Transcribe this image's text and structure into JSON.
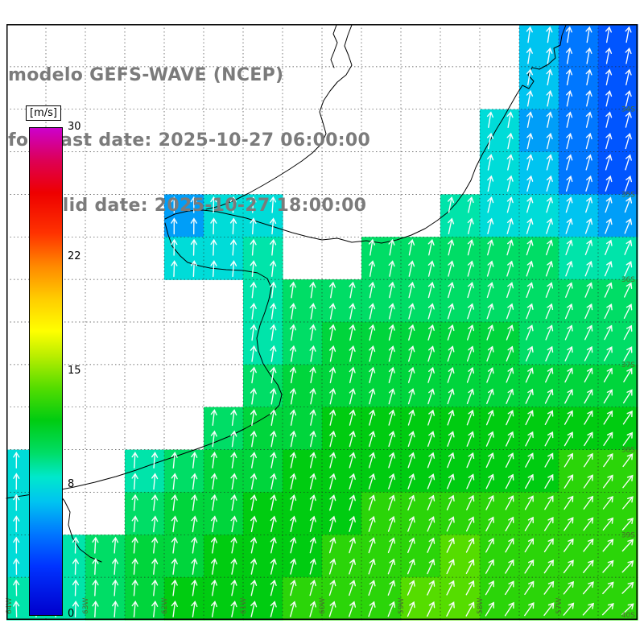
{
  "header": {
    "line1": "modelo GEFS-WAVE (NCEP)",
    "line2": "forecast date: 2025-10-27 06:00:00",
    "line3": "valid date: 2025-10-27 18:00:00"
  },
  "colorbar": {
    "unit_label": "[m/s]",
    "min": 0,
    "max": 30,
    "tick_values": [
      30,
      22,
      15,
      8,
      0
    ],
    "stops": [
      {
        "value": 0,
        "color": "#0000cd"
      },
      {
        "value": 3,
        "color": "#0033ff"
      },
      {
        "value": 5,
        "color": "#0077ff"
      },
      {
        "value": 7,
        "color": "#00c4f0"
      },
      {
        "value": 8.5,
        "color": "#00e8cc"
      },
      {
        "value": 10,
        "color": "#00dd66"
      },
      {
        "value": 12,
        "color": "#00cc11"
      },
      {
        "value": 14,
        "color": "#55dd00"
      },
      {
        "value": 16,
        "color": "#bbee00"
      },
      {
        "value": 17.5,
        "color": "#ffff00"
      },
      {
        "value": 19.5,
        "color": "#ffcc00"
      },
      {
        "value": 21.5,
        "color": "#ff8800"
      },
      {
        "value": 23.5,
        "color": "#ff3300"
      },
      {
        "value": 26,
        "color": "#ee0000"
      },
      {
        "value": 28,
        "color": "#dd0055"
      },
      {
        "value": 30,
        "color": "#cc00cc"
      }
    ]
  },
  "map": {
    "lat_labels": [
      "34S",
      "35S",
      "36S",
      "37S",
      "38S",
      "39S",
      "40S"
    ],
    "lon_labels": [
      "64W",
      "63W",
      "62W",
      "61W",
      "60W",
      "59W",
      "58W",
      "57W"
    ]
  },
  "wind": {
    "speed_grid": [
      [
        null,
        null,
        null,
        null,
        null,
        null,
        null,
        null,
        null,
        null,
        null,
        null,
        null,
        7,
        5,
        4
      ],
      [
        null,
        null,
        null,
        null,
        null,
        null,
        null,
        null,
        null,
        null,
        null,
        null,
        null,
        7,
        5,
        4
      ],
      [
        null,
        null,
        null,
        null,
        null,
        null,
        null,
        null,
        null,
        null,
        null,
        null,
        8,
        6,
        5,
        4
      ],
      [
        null,
        null,
        null,
        null,
        null,
        null,
        null,
        null,
        null,
        null,
        null,
        null,
        8,
        7,
        5,
        4
      ],
      [
        null,
        null,
        null,
        null,
        6,
        8,
        8,
        null,
        null,
        null,
        null,
        9,
        8,
        8,
        7,
        6
      ],
      [
        null,
        null,
        null,
        null,
        8,
        8,
        9,
        null,
        null,
        10,
        10,
        10,
        10,
        10,
        9,
        9
      ],
      [
        null,
        null,
        null,
        null,
        null,
        null,
        9,
        10,
        10,
        10,
        10,
        10,
        10,
        10,
        10,
        10
      ],
      [
        null,
        null,
        null,
        null,
        null,
        null,
        9,
        10,
        11,
        11,
        11,
        11,
        11,
        10,
        10,
        10
      ],
      [
        null,
        null,
        null,
        null,
        null,
        null,
        10,
        11,
        11,
        11,
        11,
        11,
        11,
        11,
        11,
        11
      ],
      [
        null,
        null,
        null,
        null,
        null,
        10,
        11,
        11,
        12,
        12,
        12,
        12,
        12,
        12,
        12,
        12
      ],
      [
        8,
        null,
        null,
        9,
        10,
        11,
        11,
        12,
        12,
        12,
        12,
        12,
        12,
        12,
        13,
        13
      ],
      [
        8,
        null,
        null,
        10,
        11,
        11,
        12,
        12,
        12,
        13,
        13,
        13,
        13,
        13,
        13,
        13
      ],
      [
        8,
        9,
        10,
        11,
        11,
        12,
        12,
        12,
        13,
        13,
        13,
        14,
        13,
        13,
        13,
        13
      ],
      [
        9,
        9,
        10,
        11,
        12,
        12,
        12,
        13,
        13,
        13,
        14,
        14,
        13,
        13,
        13,
        13
      ]
    ],
    "dir_grid": [
      [
        0,
        0,
        0,
        0,
        0,
        5,
        8,
        10
      ],
      [
        0,
        0,
        0,
        0,
        5,
        8,
        12,
        15
      ],
      [
        -3,
        0,
        0,
        5,
        8,
        12,
        18,
        22
      ],
      [
        -3,
        0,
        5,
        8,
        12,
        18,
        22,
        28
      ],
      [
        0,
        0,
        5,
        10,
        15,
        20,
        28,
        35
      ],
      [
        0,
        3,
        8,
        12,
        18,
        25,
        32,
        42
      ],
      [
        -3,
        3,
        8,
        15,
        20,
        28,
        38,
        48
      ]
    ],
    "arrow_color": "#ffffff"
  },
  "colors": {
    "header_text": "#7b7b7b",
    "tick_label": "#4a6e2f",
    "grid_line": "#222222",
    "coastline": "#000000",
    "land": "#ffffff"
  }
}
